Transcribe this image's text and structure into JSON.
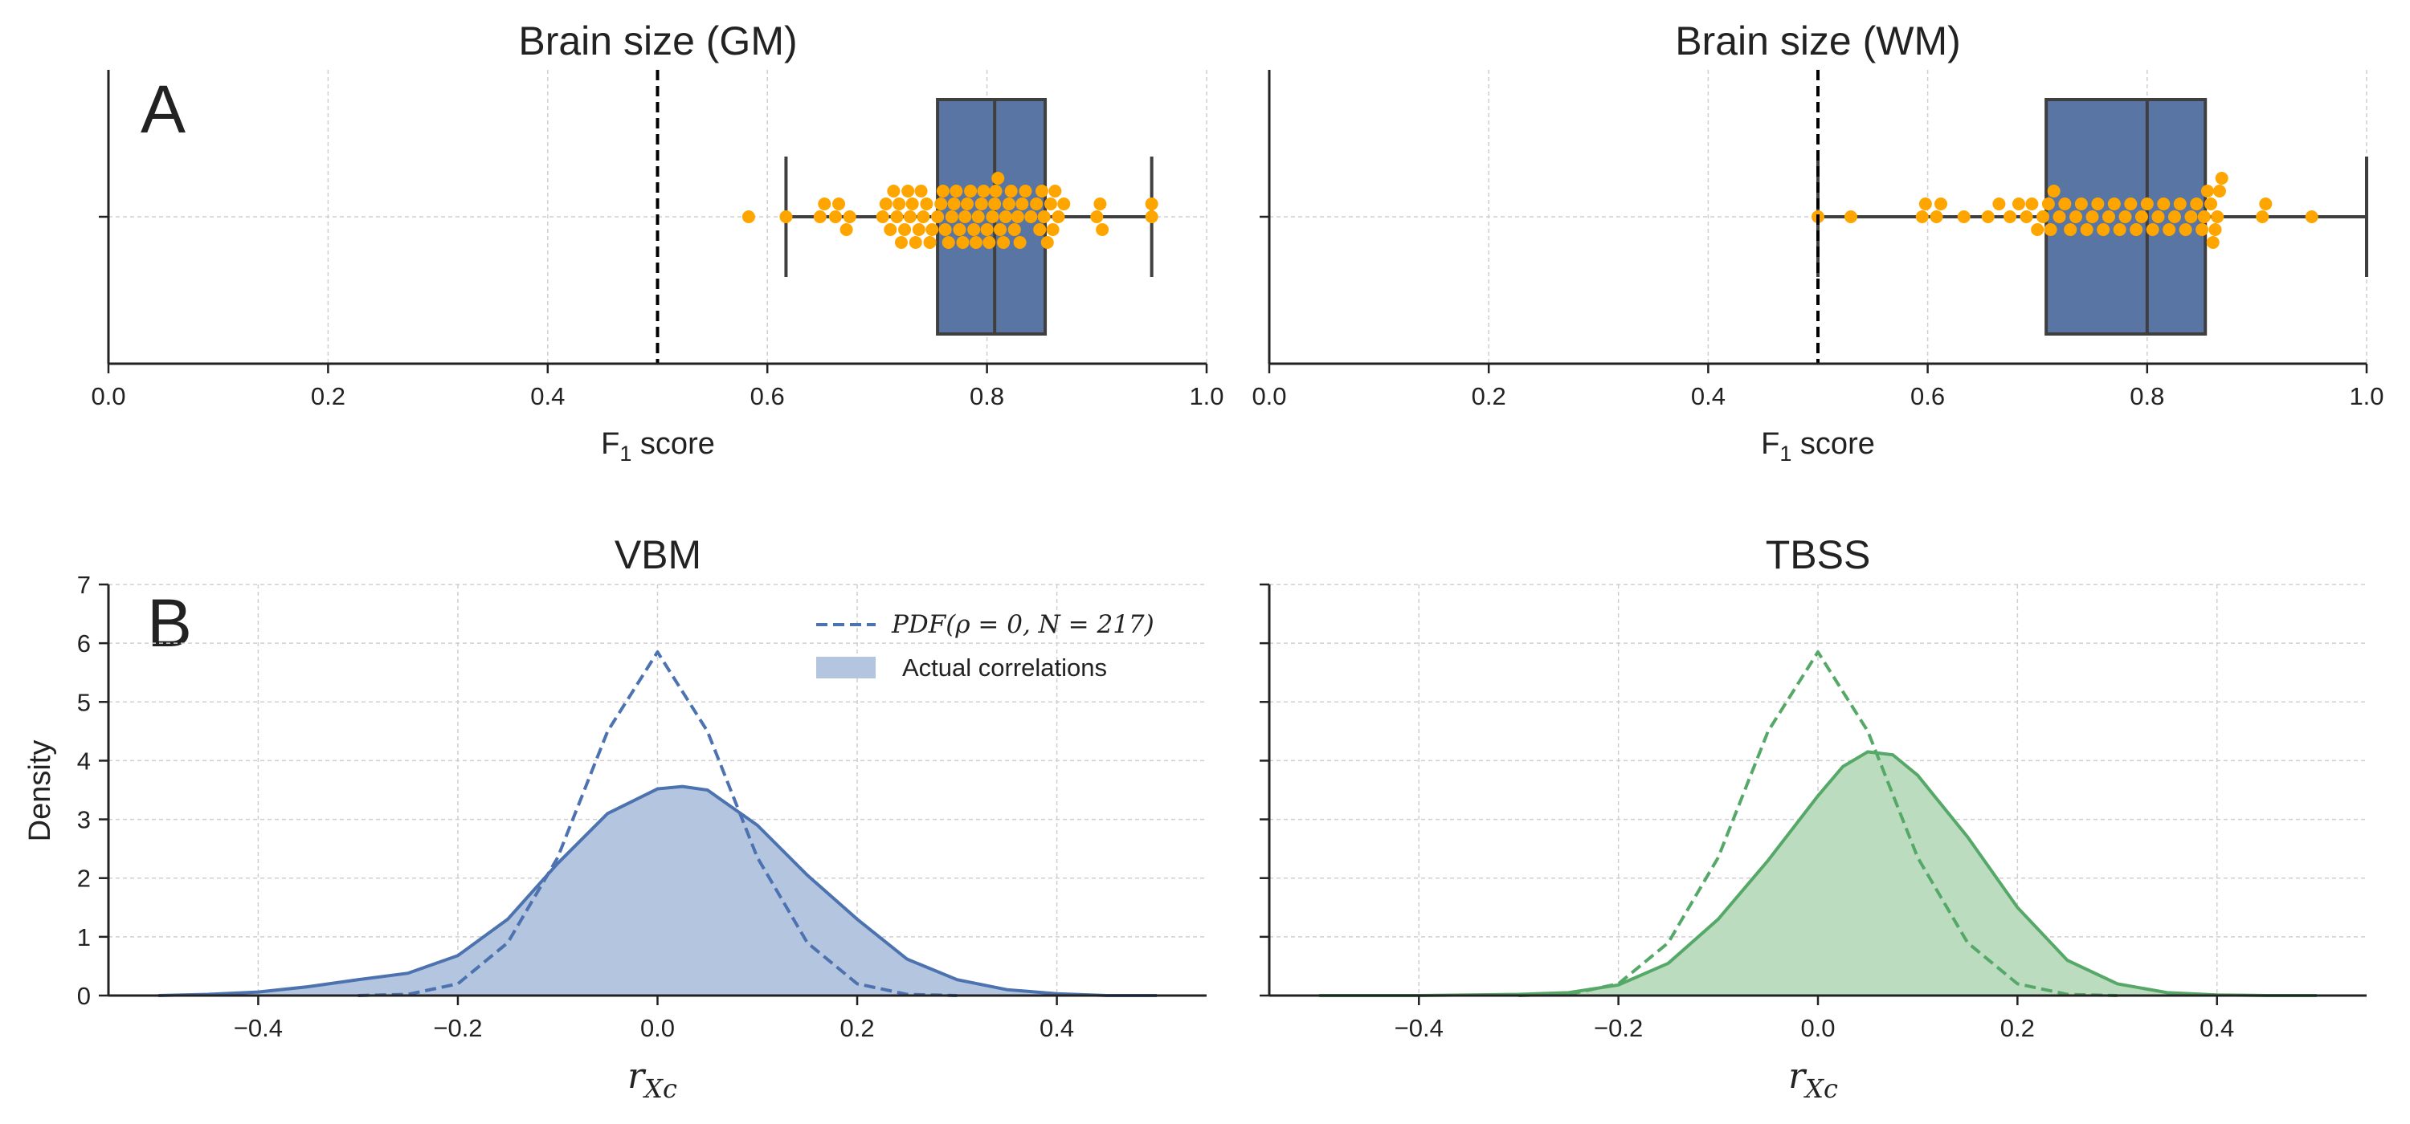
{
  "panel_labels": {
    "top": "A",
    "bottom": "B"
  },
  "titles": {
    "gm": "Brain size (GM)",
    "wm": "Brain size (WM)",
    "vbm": "VBM",
    "tbss": "TBSS"
  },
  "axis_labels": {
    "f1_main": "F",
    "f1_sub": "1",
    "f1_rest": " score",
    "density": "Density",
    "rxc_main": "r",
    "rxc_sub": "Xc"
  },
  "legend": {
    "pdf_prefix": "PDF",
    "pdf_args": "(ρ = 0, N = 217)",
    "actual": "Actual correlations"
  },
  "colors": {
    "box_fill": "#5875a4",
    "box_edge": "#3f3f3f",
    "swarm": "#ffa500",
    "threshold": "#000000",
    "vbm": "#4c72b0",
    "vbm_fill": "#b4c5df",
    "tbss": "#55a868",
    "tbss_fill": "#bcdcbf"
  },
  "chart_data": [
    {
      "type": "box",
      "panel": "gm",
      "title": "Brain size (GM)",
      "xlabel": "F1 score",
      "xlim": [
        0.0,
        1.0
      ],
      "xticks": [
        "0.0",
        "0.2",
        "0.4",
        "0.6",
        "0.8",
        "1.0"
      ],
      "chance_line": 0.5,
      "box": {
        "whisker_low": 0.617,
        "q1": 0.755,
        "median": 0.807,
        "q3": 0.853,
        "whisker_high": 0.95
      },
      "points": [
        0.583,
        0.617,
        0.648,
        0.652,
        0.662,
        0.665,
        0.672,
        0.675,
        0.705,
        0.708,
        0.712,
        0.715,
        0.718,
        0.72,
        0.722,
        0.725,
        0.728,
        0.73,
        0.732,
        0.735,
        0.738,
        0.74,
        0.742,
        0.745,
        0.748,
        0.75,
        0.755,
        0.758,
        0.76,
        0.762,
        0.765,
        0.768,
        0.77,
        0.772,
        0.775,
        0.778,
        0.78,
        0.782,
        0.785,
        0.788,
        0.79,
        0.792,
        0.795,
        0.797,
        0.8,
        0.802,
        0.805,
        0.807,
        0.808,
        0.81,
        0.812,
        0.815,
        0.817,
        0.82,
        0.822,
        0.825,
        0.828,
        0.83,
        0.832,
        0.835,
        0.84,
        0.845,
        0.848,
        0.85,
        0.852,
        0.855,
        0.858,
        0.86,
        0.862,
        0.865,
        0.87,
        0.9,
        0.903,
        0.905,
        0.95,
        0.95
      ]
    },
    {
      "type": "box",
      "panel": "wm",
      "title": "Brain size (WM)",
      "xlabel": "F1 score",
      "xlim": [
        0.0,
        1.0
      ],
      "xticks": [
        "0.0",
        "0.2",
        "0.4",
        "0.6",
        "0.8",
        "1.0"
      ],
      "chance_line": 0.5,
      "box": {
        "whisker_low": 0.5,
        "q1": 0.708,
        "median": 0.8,
        "q3": 0.853,
        "whisker_high": 1.0
      },
      "points": [
        0.5,
        0.53,
        0.595,
        0.598,
        0.608,
        0.612,
        0.633,
        0.655,
        0.665,
        0.675,
        0.683,
        0.69,
        0.695,
        0.7,
        0.705,
        0.71,
        0.712,
        0.715,
        0.72,
        0.725,
        0.73,
        0.735,
        0.74,
        0.745,
        0.75,
        0.755,
        0.76,
        0.765,
        0.77,
        0.775,
        0.78,
        0.785,
        0.79,
        0.795,
        0.8,
        0.805,
        0.81,
        0.815,
        0.82,
        0.825,
        0.83,
        0.835,
        0.84,
        0.845,
        0.85,
        0.852,
        0.855,
        0.858,
        0.86,
        0.862,
        0.864,
        0.866,
        0.868,
        0.905,
        0.908,
        0.95
      ]
    },
    {
      "type": "area",
      "panel": "vbm",
      "title": "VBM",
      "xlabel": "rXc",
      "ylabel": "Density",
      "xlim": [
        -0.55,
        0.55
      ],
      "ylim": [
        0,
        7
      ],
      "xticks": [
        -0.4,
        -0.2,
        0.0,
        0.2,
        0.4
      ],
      "yticks": [
        0,
        1,
        2,
        3,
        4,
        5,
        6,
        7
      ],
      "legend_position": "top-right",
      "series": [
        {
          "name": "Actual correlations",
          "style": "filled-kde",
          "x": [
            -0.5,
            -0.45,
            -0.4,
            -0.35,
            -0.3,
            -0.25,
            -0.2,
            -0.15,
            -0.1,
            -0.05,
            0.0,
            0.025,
            0.05,
            0.1,
            0.15,
            0.2,
            0.25,
            0.3,
            0.35,
            0.4,
            0.45,
            0.5
          ],
          "y": [
            0.0,
            0.02,
            0.06,
            0.15,
            0.27,
            0.38,
            0.68,
            1.3,
            2.25,
            3.1,
            3.52,
            3.56,
            3.5,
            2.9,
            2.05,
            1.3,
            0.62,
            0.27,
            0.1,
            0.03,
            0.0,
            0.0
          ]
        },
        {
          "name": "PDF(ρ = 0, N = 217)",
          "style": "dashed",
          "x": [
            -0.3,
            -0.25,
            -0.2,
            -0.15,
            -0.1,
            -0.05,
            0.0,
            0.05,
            0.1,
            0.15,
            0.2,
            0.25,
            0.3
          ],
          "y": [
            0.0,
            0.02,
            0.2,
            0.9,
            2.35,
            4.5,
            5.85,
            4.5,
            2.35,
            0.9,
            0.2,
            0.02,
            0.0
          ]
        }
      ]
    },
    {
      "type": "area",
      "panel": "tbss",
      "title": "TBSS",
      "xlabel": "rXc",
      "xlim": [
        -0.55,
        0.55
      ],
      "ylim": [
        0,
        7
      ],
      "xticks": [
        -0.4,
        -0.2,
        0.0,
        0.2,
        0.4
      ],
      "series": [
        {
          "style": "filled-kde",
          "x": [
            -0.5,
            -0.4,
            -0.3,
            -0.25,
            -0.2,
            -0.15,
            -0.1,
            -0.05,
            0.0,
            0.025,
            0.05,
            0.075,
            0.1,
            0.15,
            0.2,
            0.25,
            0.3,
            0.35,
            0.4,
            0.45,
            0.5
          ],
          "y": [
            0.0,
            0.0,
            0.02,
            0.05,
            0.18,
            0.55,
            1.3,
            2.3,
            3.4,
            3.9,
            4.15,
            4.1,
            3.75,
            2.7,
            1.5,
            0.6,
            0.2,
            0.05,
            0.01,
            0.0,
            0.0
          ]
        },
        {
          "style": "dashed",
          "x": [
            -0.3,
            -0.25,
            -0.2,
            -0.15,
            -0.1,
            -0.05,
            0.0,
            0.05,
            0.1,
            0.15,
            0.2,
            0.25,
            0.3
          ],
          "y": [
            0.0,
            0.02,
            0.2,
            0.9,
            2.35,
            4.5,
            5.85,
            4.5,
            2.35,
            0.9,
            0.2,
            0.02,
            0.0
          ]
        }
      ]
    }
  ]
}
